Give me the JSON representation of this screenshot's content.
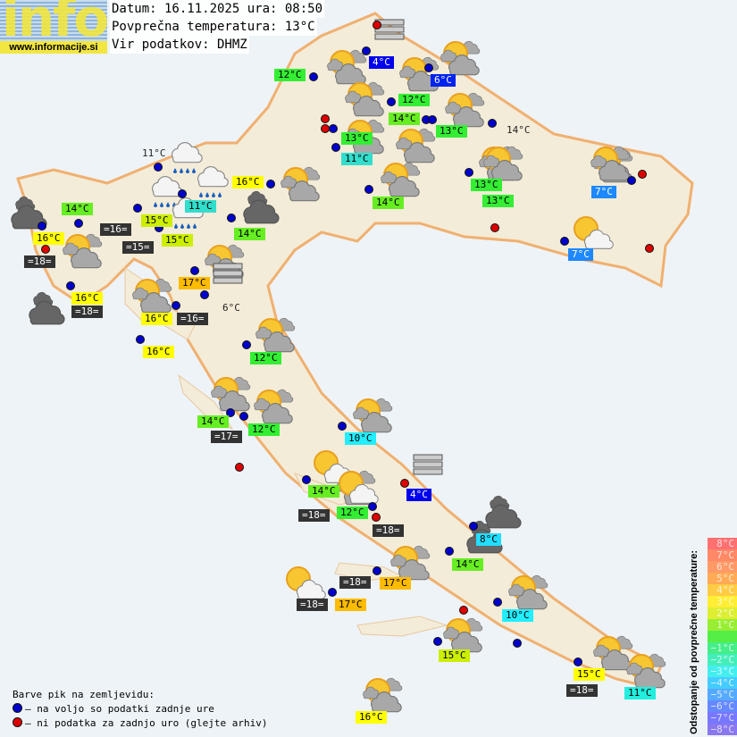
{
  "header": {
    "logo_text": "info",
    "site_url": "www.informacije.si",
    "date_line": "Datum: 16.11.2025 ura: 08:50",
    "avg_temp_line": "Povprečna temperatura: 13°C",
    "source_line": "Vir podatkov: DHMZ"
  },
  "colors": {
    "marker_available": "#0000cc",
    "marker_missing": "#dd0000",
    "land": "#f3ecd8",
    "sea": "#eef3f7",
    "border": "#f0b070"
  },
  "temperature_labels": [
    {
      "text": "4°C",
      "color": "#0000ee",
      "fg": "#fff"
    },
    {
      "text": "6°C",
      "color": "#0022ee",
      "fg": "#fff"
    },
    {
      "text": "12°C",
      "color": "#33ee33",
      "fg": "#000"
    },
    {
      "text": "12°C",
      "color": "#33ee33",
      "fg": "#000"
    },
    {
      "text": "14°C",
      "color": "#66ee22",
      "fg": "#000"
    },
    {
      "text": "13°C",
      "color": "#33ee33",
      "fg": "#000"
    },
    {
      "text": "14°C",
      "color": "",
      "fg": "#222"
    },
    {
      "text": "13°C",
      "color": "#33ee33",
      "fg": "#000"
    },
    {
      "text": "11°C",
      "color": "#33ddcc",
      "fg": "#000"
    },
    {
      "text": "16°C",
      "color": "#ffff00",
      "fg": "#000"
    },
    {
      "text": "14°C",
      "color": "#66ee22",
      "fg": "#000"
    },
    {
      "text": "13°C",
      "color": "#33ee33",
      "fg": "#000"
    },
    {
      "text": "7°C",
      "color": "#1e88ff",
      "fg": "#fff"
    },
    {
      "text": "7°C",
      "color": "#1e88ff",
      "fg": "#fff"
    },
    {
      "text": "11°C",
      "color": "",
      "fg": "#222"
    },
    {
      "text": "11°C",
      "color": "#33ddcc",
      "fg": "#000"
    },
    {
      "text": "15°C",
      "color": "#ccee00",
      "fg": "#000"
    },
    {
      "text": "15°C",
      "color": "#ccee00",
      "fg": "#000"
    },
    {
      "text": "14°C",
      "color": "#66ee22",
      "fg": "#000"
    },
    {
      "text": "16°C",
      "color": "#ffff00",
      "fg": "#000"
    },
    {
      "text": "16°C",
      "color": "#ffff00",
      "fg": "#000"
    },
    {
      "text": "17°C",
      "color": "#ffbb00",
      "fg": "#000"
    },
    {
      "text": "6°C",
      "color": "",
      "fg": "#222"
    },
    {
      "text": "16°C",
      "color": "#ffff00",
      "fg": "#000"
    },
    {
      "text": "16°C",
      "color": "#ffff00",
      "fg": "#000"
    },
    {
      "text": "14°C",
      "color": "#66ee22",
      "fg": "#000"
    },
    {
      "text": "12°C",
      "color": "#33ee33",
      "fg": "#000"
    },
    {
      "text": "14°C",
      "color": "#66ee22",
      "fg": "#000"
    },
    {
      "text": "12°C",
      "color": "#33ee33",
      "fg": "#000"
    },
    {
      "text": "10°C",
      "color": "#22eeff",
      "fg": "#000"
    },
    {
      "text": "14°C",
      "color": "#66ee22",
      "fg": "#000"
    },
    {
      "text": "4°C",
      "color": "#0000ee",
      "fg": "#fff"
    },
    {
      "text": "12°C",
      "color": "#33ee33",
      "fg": "#000"
    },
    {
      "text": "8°C",
      "color": "#22ddff",
      "fg": "#000"
    },
    {
      "text": "14°C",
      "color": "#66ee22",
      "fg": "#000"
    },
    {
      "text": "17°C",
      "color": "#ffbb00",
      "fg": "#000"
    },
    {
      "text": "17°C",
      "color": "#ffbb00",
      "fg": "#000"
    },
    {
      "text": "10°C",
      "color": "#22eeff",
      "fg": "#000"
    },
    {
      "text": "15°C",
      "color": "#ccee00",
      "fg": "#000"
    },
    {
      "text": "15°C",
      "color": "#ffff00",
      "fg": "#000"
    },
    {
      "text": "11°C",
      "color": "#22eedd",
      "fg": "#000"
    },
    {
      "text": "16°C",
      "color": "#ffff00",
      "fg": "#000"
    },
    {
      "text": "13°C",
      "color": "#33ee33",
      "fg": "#000"
    }
  ],
  "sea_temperature_labels": [
    "=16=",
    "=15=",
    "=18=",
    "=18=",
    "=16=",
    "=17=",
    "=18=",
    "=18=",
    "=18=",
    "=18=",
    "=18="
  ],
  "markers": [
    "missing",
    "available",
    "available",
    "available",
    "available",
    "missing",
    "missing",
    "available",
    "available",
    "available",
    "available",
    "available",
    "available",
    "available",
    "available",
    "missing",
    "missing",
    "available",
    "missing",
    "available",
    "available",
    "available",
    "available",
    "available",
    "available",
    "missing",
    "available",
    "available",
    "available",
    "available",
    "available",
    "available",
    "available",
    "available",
    "available",
    "missing",
    "available",
    "available",
    "available",
    "missing",
    "available",
    "available",
    "available",
    "available",
    "missing",
    "available",
    "missing",
    "available",
    "available",
    "available",
    "available"
  ],
  "weather_icons": [
    "partly-cloudy",
    "partly-cloudy",
    "partly-cloudy",
    "partly-cloudy",
    "partly-cloudy",
    "partly-cloudy",
    "partly-cloudy",
    "partly-cloudy",
    "partly-cloudy",
    "partly-cloudy",
    "partly-cloudy",
    "partly-cloudy",
    "partly-cloudy",
    "partly-cloudy",
    "partly-cloudy",
    "partly-cloudy",
    "partly-cloudy",
    "partly-cloudy",
    "partly-cloudy",
    "partly-cloudy",
    "partly-cloudy",
    "partly-cloudy",
    "partly-cloudy",
    "partly-cloudy",
    "partly-cloudy",
    "partly-cloudy",
    "partly-cloudy",
    "sun-light-cloud",
    "sun-light-cloud",
    "sun-light-cloud",
    "sun-light-cloud",
    "rain",
    "rain",
    "rain",
    "rain",
    "overcast",
    "overcast",
    "overcast",
    "overcast",
    "overcast",
    "fog",
    "fog",
    "fog"
  ],
  "legend": {
    "title": "Barve pik na zemljevidu:",
    "available": "– na voljo so podatki zadnje ure",
    "missing": "– ni podatka za zadnjo uro (glejte arhiv)"
  },
  "deviation_scale": {
    "title": "Odstopanje od povprečne temperature:",
    "steps": [
      {
        "label": "8°C",
        "color": "#ff7070"
      },
      {
        "label": "7°C",
        "color": "#ff8866"
      },
      {
        "label": "6°C",
        "color": "#ff9966"
      },
      {
        "label": "5°C",
        "color": "#ffaa55"
      },
      {
        "label": "4°C",
        "color": "#ffcc44"
      },
      {
        "label": "3°C",
        "color": "#ffee33"
      },
      {
        "label": "2°C",
        "color": "#ddee33"
      },
      {
        "label": "1°C",
        "color": "#99ee33"
      },
      {
        "label": "",
        "color": "#55ee44"
      },
      {
        "label": "−1°C",
        "color": "#44ee88"
      },
      {
        "label": "−2°C",
        "color": "#44eebb"
      },
      {
        "label": "−3°C",
        "color": "#44eeee"
      },
      {
        "label": "−4°C",
        "color": "#44ccff"
      },
      {
        "label": "−5°C",
        "color": "#55aaff"
      },
      {
        "label": "−6°C",
        "color": "#6688ff"
      },
      {
        "label": "−7°C",
        "color": "#7777ff"
      },
      {
        "label": "−8°C",
        "color": "#8877ee"
      }
    ]
  }
}
